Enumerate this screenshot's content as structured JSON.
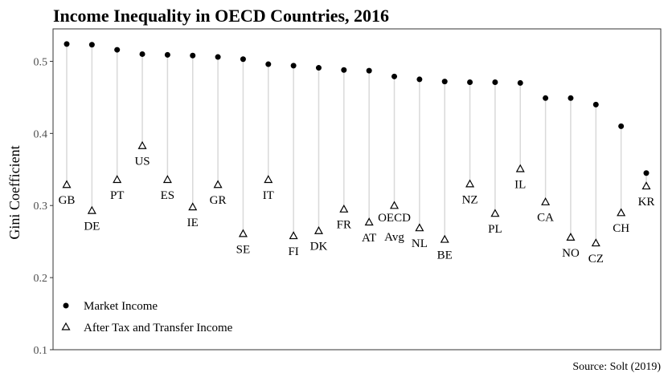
{
  "chart_data": {
    "type": "scatter",
    "title": "Income Inequality in OECD Countries, 2016",
    "ylabel": "Gini Coefficient",
    "xlabel": "",
    "ylim": [
      0.1,
      0.545
    ],
    "yticks": [
      "0.1",
      "0.2",
      "0.3",
      "0.4",
      "0.5"
    ],
    "grid": false,
    "legend_position": "bottom-left",
    "source": "Source: Solt (2019)",
    "categories": [
      "GB",
      "DE",
      "PT",
      "US",
      "ES",
      "IE",
      "GR",
      "SE",
      "IT",
      "FI",
      "DK",
      "FR",
      "AT",
      "OECD Avg",
      "NL",
      "BE",
      "NZ",
      "PL",
      "IL",
      "CA",
      "NO",
      "CZ",
      "CH",
      "KR"
    ],
    "series": [
      {
        "name": "Market Income",
        "marker": "filled-circle",
        "values": [
          0.524,
          0.523,
          0.516,
          0.51,
          0.509,
          0.508,
          0.506,
          0.503,
          0.496,
          0.494,
          0.491,
          0.488,
          0.487,
          0.479,
          0.475,
          0.472,
          0.471,
          0.471,
          0.47,
          0.449,
          0.449,
          0.44,
          0.41,
          0.345
        ]
      },
      {
        "name": "After Tax and Transfer Income",
        "marker": "open-triangle",
        "values": [
          0.329,
          0.293,
          0.336,
          0.383,
          0.336,
          0.298,
          0.329,
          0.261,
          0.336,
          0.258,
          0.265,
          0.295,
          0.277,
          0.3,
          0.269,
          0.253,
          0.33,
          0.289,
          0.351,
          0.305,
          0.256,
          0.248,
          0.29,
          0.327
        ]
      }
    ],
    "label_offsets": [
      "below",
      "below",
      "below",
      "below",
      "below",
      "below",
      "below",
      "below",
      "below",
      "below",
      "below",
      "below",
      "below",
      "above",
      "below",
      "below",
      "below",
      "below",
      "below",
      "below",
      "below",
      "below",
      "below",
      "below"
    ],
    "colors": {
      "point": "#000000",
      "segment": "#d9d9d9",
      "axis": "#333333"
    }
  }
}
